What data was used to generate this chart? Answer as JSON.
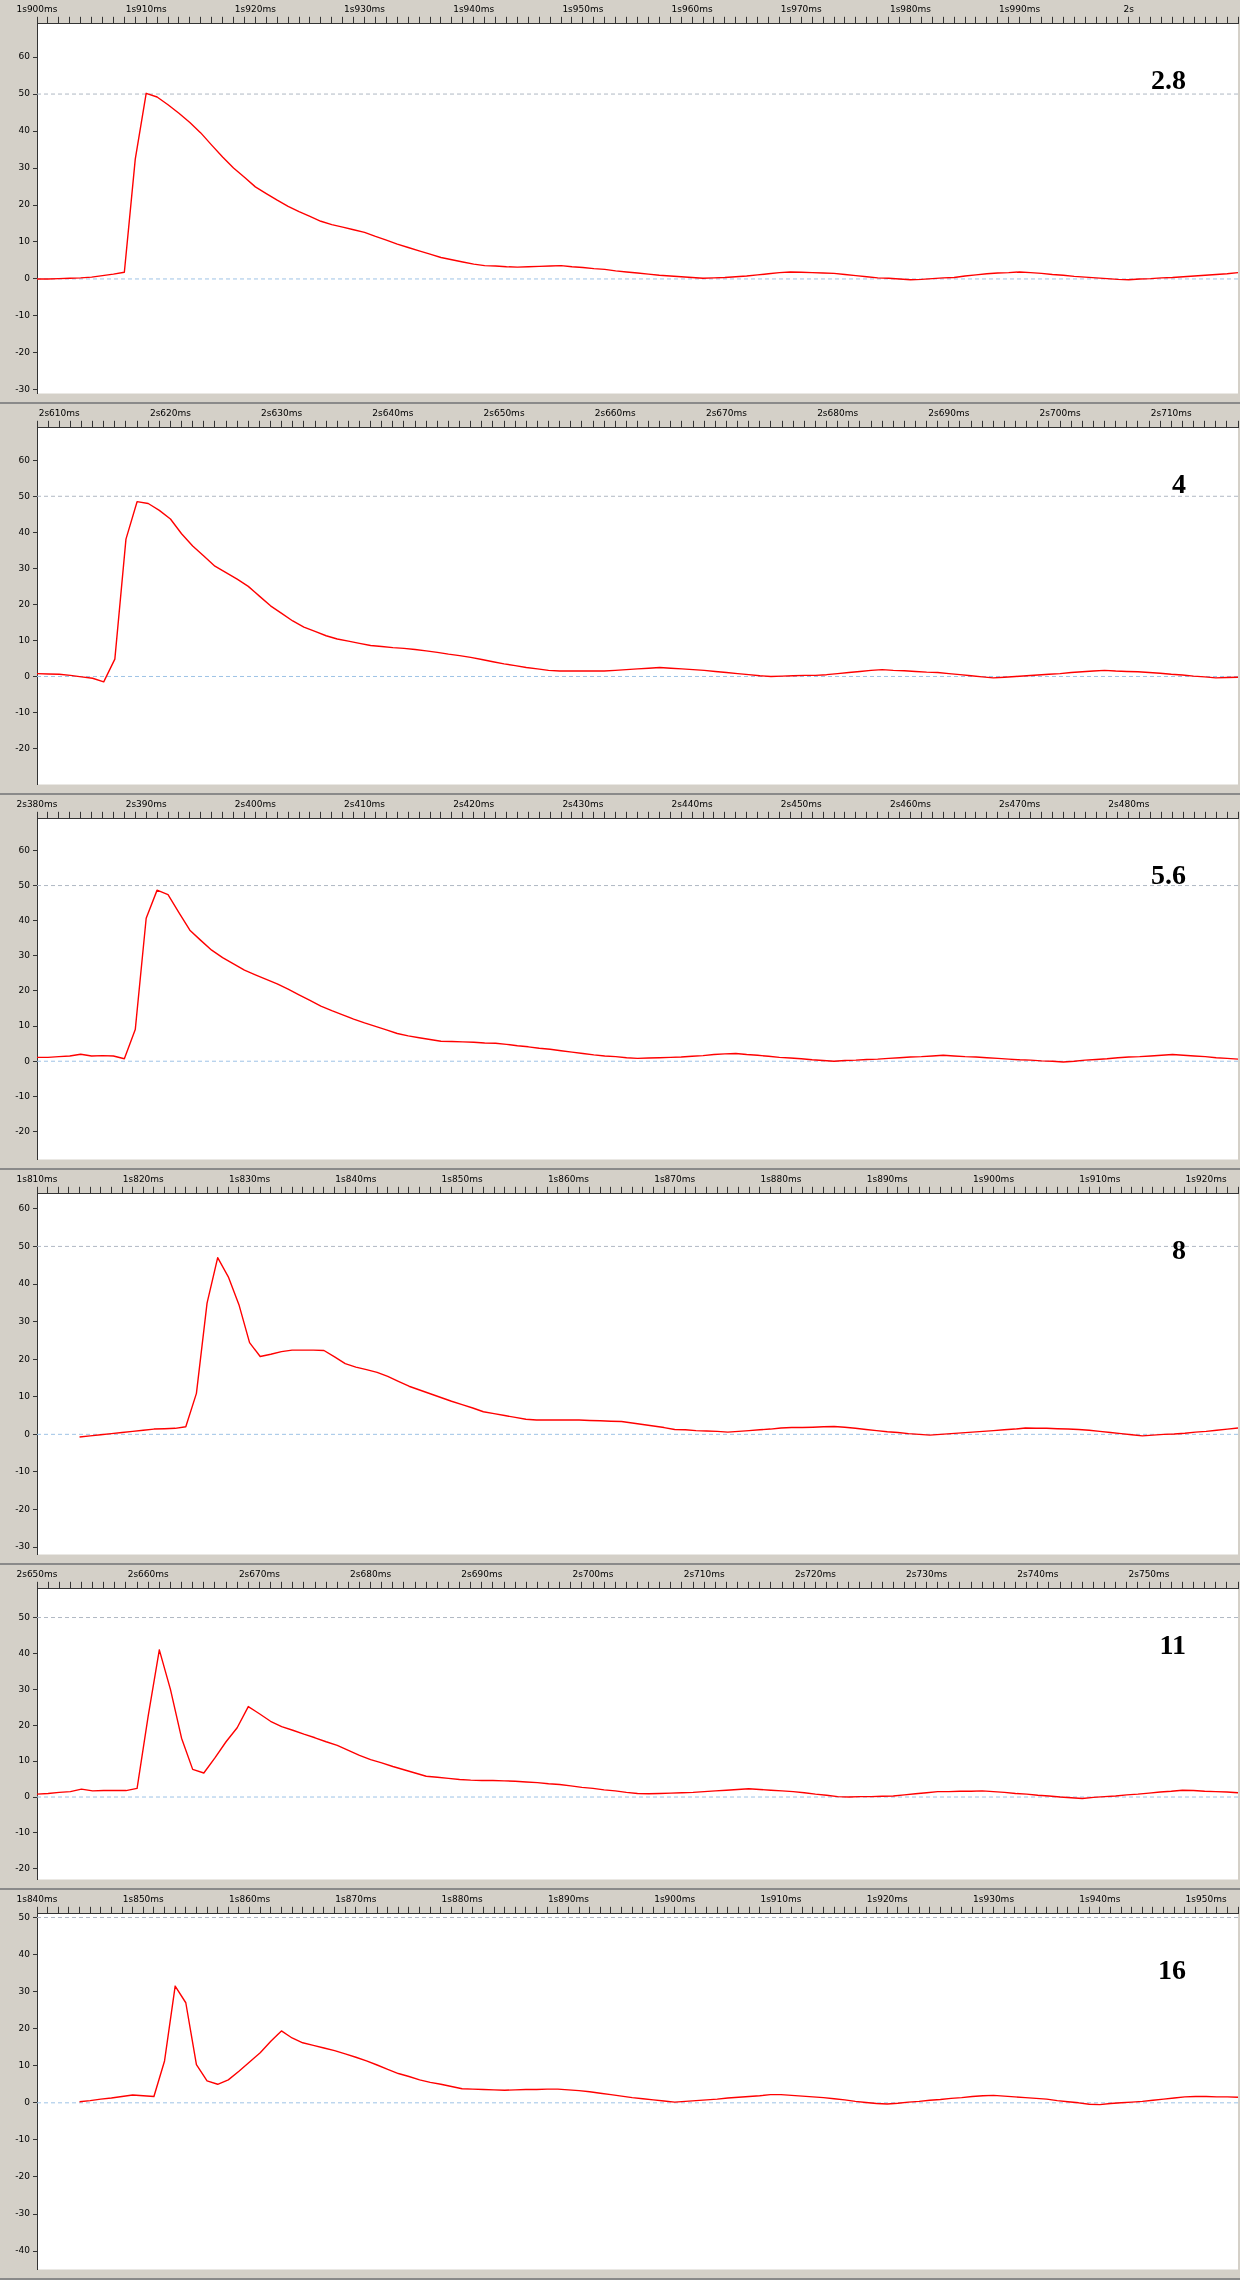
{
  "chart_data": [
    {
      "type": "line",
      "marker": "none",
      "line_style": "solid",
      "grid": false,
      "annotations": [
        "2.8"
      ],
      "ylim": [
        -31,
        69
      ],
      "yticks": [
        -30,
        -20,
        -10,
        0,
        10,
        20,
        30,
        40,
        50,
        60
      ],
      "ref_lines": [
        {
          "axis": "y",
          "value": 0,
          "color": "#9ec3e6",
          "line_style": "dashed"
        },
        {
          "axis": "y",
          "value": 50,
          "color": "#b0b8c4",
          "line_style": "dashed"
        }
      ],
      "categories": [
        "1s900ms",
        null,
        null,
        null,
        null,
        null,
        null,
        null,
        null,
        null,
        "1s910ms",
        null,
        null,
        null,
        null,
        null,
        null,
        null,
        null,
        null,
        "1s920ms",
        null,
        null,
        null,
        null,
        null,
        null,
        null,
        null,
        null,
        "1s930ms",
        null,
        null,
        null,
        null,
        null,
        null,
        null,
        null,
        null,
        "1s940ms",
        null,
        null,
        null,
        null,
        null,
        null,
        null,
        null,
        null,
        "1s950ms",
        null,
        null,
        null,
        null,
        null,
        null,
        null,
        null,
        null,
        "1s960ms",
        null,
        null,
        null,
        null,
        null,
        null,
        null,
        null,
        null,
        "1s970ms",
        null,
        null,
        null,
        null,
        null,
        null,
        null,
        null,
        null,
        "1s980ms",
        null,
        null,
        null,
        null,
        null,
        null,
        null,
        null,
        null,
        "1s990ms",
        null,
        null,
        null,
        null,
        null,
        null,
        null,
        null,
        null,
        "2s",
        null,
        null,
        null,
        null,
        null,
        null,
        null,
        null,
        null,
        null
      ],
      "series": [
        {
          "color": "#ff0000",
          "values": [
            0,
            0,
            0.1,
            0.2,
            0.3,
            0.5,
            0.9,
            1.3,
            1.8,
            32.4,
            50.2,
            49.2,
            47.1,
            44.8,
            42.3,
            39.5,
            36.2,
            33,
            30,
            27.5,
            24.9,
            23.1,
            21.3,
            19.6,
            18.2,
            16.9,
            15.6,
            14.7,
            14.0,
            13.3,
            12.6,
            11.5,
            10.5,
            9.4,
            8.5,
            7.6,
            6.7,
            5.8,
            5.2,
            4.6,
            4,
            3.6,
            3.5,
            3.3,
            3.2,
            3.3,
            3.4,
            3.5,
            3.6,
            3.3,
            3.1,
            2.8,
            2.6,
            2.2,
            1.9,
            1.6,
            1.3,
            1,
            0.8,
            0.6,
            0.4,
            0.2,
            0.3,
            0.4,
            0.6,
            0.8,
            1.1,
            1.4,
            1.7,
            1.9,
            1.8,
            1.7,
            1.6,
            1.5,
            1.2,
            0.9,
            0.6,
            0.3,
            0.2,
            0,
            -0.2,
            -0.1,
            0.1,
            0.3,
            0.4,
            0.8,
            1.1,
            1.4,
            1.6,
            1.7,
            1.9,
            1.7,
            1.5,
            1.2,
            1,
            0.7,
            0.5,
            0.3,
            0.1,
            -0.1,
            -0.2,
            0,
            0.1,
            0.3,
            0.4,
            0.6,
            0.8,
            1,
            1.2,
            1.4,
            1.7
          ]
        }
      ]
    },
    {
      "type": "line",
      "marker": "none",
      "line_style": "solid",
      "grid": false,
      "annotations": [
        "4"
      ],
      "ylim": [
        -30,
        69
      ],
      "yticks": [
        -20,
        -10,
        0,
        10,
        20,
        30,
        40,
        50,
        60
      ],
      "ref_lines": [
        {
          "axis": "y",
          "value": 0,
          "color": "#9ec3e6",
          "line_style": "dashed"
        },
        {
          "axis": "y",
          "value": 50,
          "color": "#b0b8c4",
          "line_style": "dashed"
        }
      ],
      "categories": [
        null,
        null,
        "2s610ms",
        null,
        null,
        null,
        null,
        null,
        null,
        null,
        null,
        null,
        "2s620ms",
        null,
        null,
        null,
        null,
        null,
        null,
        null,
        null,
        null,
        "2s630ms",
        null,
        null,
        null,
        null,
        null,
        null,
        null,
        null,
        null,
        "2s640ms",
        null,
        null,
        null,
        null,
        null,
        null,
        null,
        null,
        null,
        "2s650ms",
        null,
        null,
        null,
        null,
        null,
        null,
        null,
        null,
        null,
        "2s660ms",
        null,
        null,
        null,
        null,
        null,
        null,
        null,
        null,
        null,
        "2s670ms",
        null,
        null,
        null,
        null,
        null,
        null,
        null,
        null,
        null,
        "2s680ms",
        null,
        null,
        null,
        null,
        null,
        null,
        null,
        null,
        null,
        "2s690ms",
        null,
        null,
        null,
        null,
        null,
        null,
        null,
        null,
        null,
        "2s700ms",
        null,
        null,
        null,
        null,
        null,
        null,
        null,
        null,
        null,
        "2s710ms",
        null,
        null,
        null,
        null,
        null,
        null
      ],
      "series": [
        {
          "color": "#ff0000",
          "values": [
            0.8,
            0.7,
            0.6,
            0.3,
            -0.1,
            -0.5,
            -1.5,
            4.8,
            38.1,
            48.5,
            48,
            46.1,
            43.7,
            39.6,
            36.2,
            33.4,
            30.6,
            28.8,
            27,
            25,
            22.3,
            19.6,
            17.5,
            15.4,
            13.7,
            12.5,
            11.3,
            10.4,
            9.8,
            9.2,
            8.6,
            8.3,
            8,
            7.8,
            7.5,
            7.1,
            6.7,
            6.2,
            5.8,
            5.3,
            4.7,
            4.1,
            3.5,
            3,
            2.5,
            2.1,
            1.7,
            1.5,
            1.5,
            1.5,
            1.5,
            1.5,
            1.7,
            1.9,
            2.1,
            2.3,
            2.5,
            2.3,
            2.1,
            1.9,
            1.7,
            1.4,
            1.1,
            0.8,
            0.5,
            0.2,
            0,
            0.1,
            0.2,
            0.3,
            0.3,
            0.5,
            0.8,
            1.1,
            1.4,
            1.7,
            1.9,
            1.7,
            1.6,
            1.4,
            1.2,
            1.1,
            0.8,
            0.5,
            0.2,
            -0.1,
            -0.4,
            -0.2,
            0,
            0.2,
            0.4,
            0.6,
            0.8,
            1.1,
            1.3,
            1.5,
            1.7,
            1.5,
            1.4,
            1.3,
            1.1,
            0.9,
            0.6,
            0.4,
            0.1,
            -0.1,
            -0.4,
            -0.3,
            -0.2
          ]
        }
      ]
    },
    {
      "type": "line",
      "marker": "none",
      "line_style": "solid",
      "grid": false,
      "annotations": [
        "5.6"
      ],
      "ylim": [
        -28,
        69
      ],
      "yticks": [
        -20,
        -10,
        0,
        10,
        20,
        30,
        40,
        50,
        60
      ],
      "ref_lines": [
        {
          "axis": "y",
          "value": 0,
          "color": "#9ec3e6",
          "line_style": "dashed"
        },
        {
          "axis": "y",
          "value": 50,
          "color": "#b0b8c4",
          "line_style": "dashed"
        }
      ],
      "categories": [
        "2s380ms",
        null,
        null,
        null,
        null,
        null,
        null,
        null,
        null,
        null,
        "2s390ms",
        null,
        null,
        null,
        null,
        null,
        null,
        null,
        null,
        null,
        "2s400ms",
        null,
        null,
        null,
        null,
        null,
        null,
        null,
        null,
        null,
        "2s410ms",
        null,
        null,
        null,
        null,
        null,
        null,
        null,
        null,
        null,
        "2s420ms",
        null,
        null,
        null,
        null,
        null,
        null,
        null,
        null,
        null,
        "2s430ms",
        null,
        null,
        null,
        null,
        null,
        null,
        null,
        null,
        null,
        "2s440ms",
        null,
        null,
        null,
        null,
        null,
        null,
        null,
        null,
        null,
        "2s450ms",
        null,
        null,
        null,
        null,
        null,
        null,
        null,
        null,
        null,
        "2s460ms",
        null,
        null,
        null,
        null,
        null,
        null,
        null,
        null,
        null,
        "2s470ms",
        null,
        null,
        null,
        null,
        null,
        null,
        null,
        null,
        null,
        "2s480ms",
        null,
        null,
        null,
        null,
        null,
        null,
        null,
        null,
        null,
        null
      ],
      "series": [
        {
          "color": "#ff0000",
          "values": [
            1.1,
            1.1,
            1.3,
            1.5,
            2,
            1.5,
            1.6,
            1.5,
            0.7,
            9,
            40.7,
            48.7,
            47.4,
            42.3,
            37.3,
            34.4,
            31.6,
            29.5,
            27.7,
            25.9,
            24.6,
            23.3,
            22,
            20.5,
            18.9,
            17.3,
            15.7,
            14.4,
            13.2,
            12,
            10.9,
            9.9,
            8.9,
            7.9,
            7.2,
            6.7,
            6.2,
            5.7,
            5.6,
            5.5,
            5.4,
            5.2,
            5.1,
            4.8,
            4.4,
            4.1,
            3.7,
            3.4,
            3,
            2.6,
            2.2,
            1.8,
            1.5,
            1.3,
            1,
            0.8,
            0.9,
            1,
            1.1,
            1.2,
            1.4,
            1.6,
            1.9,
            2.1,
            2.2,
            1.9,
            1.7,
            1.4,
            1.1,
            0.9,
            0.7,
            0.4,
            0.2,
            0,
            0.2,
            0.3,
            0.5,
            0.6,
            0.8,
            1,
            1.2,
            1.3,
            1.5,
            1.7,
            1.5,
            1.3,
            1.2,
            1,
            0.8,
            0.6,
            0.4,
            0.3,
            0.1,
            0,
            -0.2,
            0,
            0.3,
            0.5,
            0.7,
            1,
            1.2,
            1.3,
            1.5,
            1.7,
            1.9,
            1.7,
            1.5,
            1.3,
            1,
            0.8,
            0.6
          ]
        }
      ]
    },
    {
      "type": "line",
      "marker": "none",
      "line_style": "solid",
      "grid": false,
      "annotations": [
        "8"
      ],
      "ylim": [
        -32,
        64
      ],
      "yticks": [
        -30,
        -20,
        -10,
        0,
        10,
        20,
        30,
        40,
        50,
        60
      ],
      "ref_lines": [
        {
          "axis": "y",
          "value": 0,
          "color": "#9ec3e6",
          "line_style": "dashed"
        },
        {
          "axis": "y",
          "value": 50,
          "color": "#b0b8c4",
          "line_style": "dashed"
        }
      ],
      "categories": [
        "1s810ms",
        null,
        null,
        null,
        null,
        null,
        null,
        null,
        null,
        null,
        "1s820ms",
        null,
        null,
        null,
        null,
        null,
        null,
        null,
        null,
        null,
        "1s830ms",
        null,
        null,
        null,
        null,
        null,
        null,
        null,
        null,
        null,
        "1s840ms",
        null,
        null,
        null,
        null,
        null,
        null,
        null,
        null,
        null,
        "1s850ms",
        null,
        null,
        null,
        null,
        null,
        null,
        null,
        null,
        null,
        "1s860ms",
        null,
        null,
        null,
        null,
        null,
        null,
        null,
        null,
        null,
        "1s870ms",
        null,
        null,
        null,
        null,
        null,
        null,
        null,
        null,
        null,
        "1s880ms",
        null,
        null,
        null,
        null,
        null,
        null,
        null,
        null,
        null,
        "1s890ms",
        null,
        null,
        null,
        null,
        null,
        null,
        null,
        null,
        null,
        "1s900ms",
        null,
        null,
        null,
        null,
        null,
        null,
        null,
        null,
        null,
        "1s910ms",
        null,
        null,
        null,
        null,
        null,
        null,
        null,
        null,
        null,
        "1s920ms",
        null,
        null,
        null
      ],
      "series": [
        {
          "color": "#ff0000",
          "values": [
            null,
            null,
            null,
            null,
            -0.7,
            -0.4,
            -0.1,
            0.2,
            0.5,
            0.8,
            1.1,
            1.4,
            1.5,
            1.6,
            2,
            10.9,
            34.9,
            47,
            41.9,
            34.5,
            24.4,
            20.7,
            21.3,
            22,
            22.4,
            22.4,
            22.4,
            22.3,
            20.6,
            18.8,
            17.9,
            17.2,
            16.5,
            15.4,
            14.1,
            12.8,
            11.8,
            10.8,
            9.8,
            8.8,
            7.9,
            7,
            6,
            5.5,
            5,
            4.5,
            4,
            3.8,
            3.8,
            3.8,
            3.8,
            3.8,
            3.7,
            3.6,
            3.5,
            3.4,
            3,
            2.6,
            2.2,
            1.8,
            1.3,
            1.2,
            1,
            0.9,
            0.8,
            0.6,
            0.8,
            1,
            1.2,
            1.4,
            1.7,
            1.8,
            1.8,
            1.9,
            2,
            2.1,
            1.9,
            1.6,
            1.3,
            1,
            0.7,
            0.5,
            0.2,
            0,
            -0.2,
            0,
            0.2,
            0.4,
            0.6,
            0.8,
            1,
            1.2,
            1.4,
            1.7,
            1.6,
            1.6,
            1.5,
            1.4,
            1.3,
            1.1,
            0.8,
            0.5,
            0.2,
            -0.1,
            -0.4,
            -0.2,
            0,
            0.1,
            0.3,
            0.6,
            0.8,
            1.1,
            1.4,
            1.7
          ]
        }
      ]
    },
    {
      "type": "line",
      "marker": "none",
      "line_style": "solid",
      "grid": false,
      "annotations": [
        "11"
      ],
      "ylim": [
        -23,
        58
      ],
      "yticks": [
        -20,
        -10,
        0,
        10,
        20,
        30,
        40,
        50
      ],
      "ref_lines": [
        {
          "axis": "y",
          "value": 0,
          "color": "#9ec3e6",
          "line_style": "dashed"
        },
        {
          "axis": "y",
          "value": 50,
          "color": "#b0b8c4",
          "line_style": "dashed"
        }
      ],
      "categories": [
        "2s650ms",
        null,
        null,
        null,
        null,
        null,
        null,
        null,
        null,
        null,
        "2s660ms",
        null,
        null,
        null,
        null,
        null,
        null,
        null,
        null,
        null,
        "2s670ms",
        null,
        null,
        null,
        null,
        null,
        null,
        null,
        null,
        null,
        "2s680ms",
        null,
        null,
        null,
        null,
        null,
        null,
        null,
        null,
        null,
        "2s690ms",
        null,
        null,
        null,
        null,
        null,
        null,
        null,
        null,
        null,
        "2s700ms",
        null,
        null,
        null,
        null,
        null,
        null,
        null,
        null,
        null,
        "2s710ms",
        null,
        null,
        null,
        null,
        null,
        null,
        null,
        null,
        null,
        "2s720ms",
        null,
        null,
        null,
        null,
        null,
        null,
        null,
        null,
        null,
        "2s730ms",
        null,
        null,
        null,
        null,
        null,
        null,
        null,
        null,
        null,
        "2s740ms",
        null,
        null,
        null,
        null,
        null,
        null,
        null,
        null,
        null,
        "2s750ms",
        null,
        null,
        null,
        null,
        null,
        null,
        null,
        null
      ],
      "series": [
        {
          "color": "#ff0000",
          "values": [
            0.8,
            1,
            1.3,
            1.5,
            2.2,
            1.7,
            1.8,
            1.8,
            1.8,
            2.4,
            22.6,
            41,
            30,
            16.4,
            7.7,
            6.7,
            10.9,
            15.4,
            19.3,
            25.2,
            23.2,
            21.1,
            19.6,
            18.6,
            17.5,
            16.5,
            15.4,
            14.4,
            13,
            11.6,
            10.4,
            9.5,
            8.5,
            7.6,
            6.7,
            5.8,
            5.5,
            5.2,
            4.9,
            4.7,
            4.6,
            4.6,
            4.5,
            4.4,
            4.2,
            4,
            3.7,
            3.5,
            3.1,
            2.7,
            2.4,
            2,
            1.7,
            1.3,
            1,
            0.9,
            1,
            1.1,
            1.2,
            1.3,
            1.5,
            1.7,
            1.9,
            2.1,
            2.3,
            2.1,
            1.9,
            1.7,
            1.5,
            1.2,
            0.8,
            0.5,
            0.1,
            0,
            0.1,
            0.1,
            0.2,
            0.3,
            0.6,
            0.9,
            1.2,
            1.5,
            1.5,
            1.6,
            1.6,
            1.7,
            1.5,
            1.3,
            1,
            0.8,
            0.5,
            0.3,
            0,
            -0.2,
            -0.4,
            -0.1,
            0.1,
            0.3,
            0.6,
            0.8,
            1.1,
            1.4,
            1.6,
            1.9,
            1.8,
            1.6,
            1.5,
            1.4,
            1.2
          ]
        }
      ]
    },
    {
      "type": "line",
      "marker": "none",
      "line_style": "solid",
      "grid": false,
      "annotations": [
        "16"
      ],
      "ylim": [
        -45,
        51
      ],
      "yticks": [
        -40,
        -30,
        -20,
        -10,
        0,
        10,
        20,
        30,
        40,
        50
      ],
      "ref_lines": [
        {
          "axis": "y",
          "value": 0,
          "color": "#9ec3e6",
          "line_style": "dashed"
        },
        {
          "axis": "y",
          "value": 50,
          "color": "#b0b8c4",
          "line_style": "dashed"
        }
      ],
      "categories": [
        "1s840ms",
        null,
        null,
        null,
        null,
        null,
        null,
        null,
        null,
        null,
        "1s850ms",
        null,
        null,
        null,
        null,
        null,
        null,
        null,
        null,
        null,
        "1s860ms",
        null,
        null,
        null,
        null,
        null,
        null,
        null,
        null,
        null,
        "1s870ms",
        null,
        null,
        null,
        null,
        null,
        null,
        null,
        null,
        null,
        "1s880ms",
        null,
        null,
        null,
        null,
        null,
        null,
        null,
        null,
        null,
        "1s890ms",
        null,
        null,
        null,
        null,
        null,
        null,
        null,
        null,
        null,
        "1s900ms",
        null,
        null,
        null,
        null,
        null,
        null,
        null,
        null,
        null,
        "1s910ms",
        null,
        null,
        null,
        null,
        null,
        null,
        null,
        null,
        null,
        "1s920ms",
        null,
        null,
        null,
        null,
        null,
        null,
        null,
        null,
        null,
        "1s930ms",
        null,
        null,
        null,
        null,
        null,
        null,
        null,
        null,
        null,
        "1s940ms",
        null,
        null,
        null,
        null,
        null,
        null,
        null,
        null,
        null,
        "1s950ms",
        null,
        null,
        null
      ],
      "series": [
        {
          "color": "#ff0000",
          "values": [
            null,
            null,
            null,
            null,
            0.3,
            0.6,
            1,
            1.3,
            1.7,
            2.1,
            1.9,
            1.7,
            11.3,
            31.5,
            27,
            10.3,
            5.9,
            5,
            6.2,
            8.5,
            11,
            13.5,
            16.6,
            19.4,
            17.5,
            16.2,
            15.5,
            14.8,
            14.1,
            13.2,
            12.3,
            11.3,
            10.2,
            9,
            7.9,
            7.1,
            6.2,
            5.5,
            5,
            4.4,
            3.8,
            3.7,
            3.6,
            3.5,
            3.4,
            3.5,
            3.6,
            3.6,
            3.7,
            3.7,
            3.5,
            3.3,
            3,
            2.6,
            2.2,
            1.8,
            1.4,
            1.1,
            0.8,
            0.5,
            0.2,
            0.4,
            0.6,
            0.8,
            1,
            1.3,
            1.5,
            1.7,
            1.9,
            2.2,
            2.2,
            2,
            1.8,
            1.6,
            1.4,
            1.1,
            0.8,
            0.4,
            0.1,
            -0.2,
            -0.3,
            -0.1,
            0.2,
            0.4,
            0.7,
            0.9,
            1.2,
            1.4,
            1.7,
            1.9,
            2,
            1.8,
            1.6,
            1.4,
            1.2,
            1,
            0.6,
            0.3,
            0,
            -0.4,
            -0.5,
            -0.2,
            0,
            0.2,
            0.4,
            0.7,
            1,
            1.3,
            1.6,
            1.7,
            1.7,
            1.6,
            1.6,
            1.5
          ]
        }
      ]
    }
  ]
}
